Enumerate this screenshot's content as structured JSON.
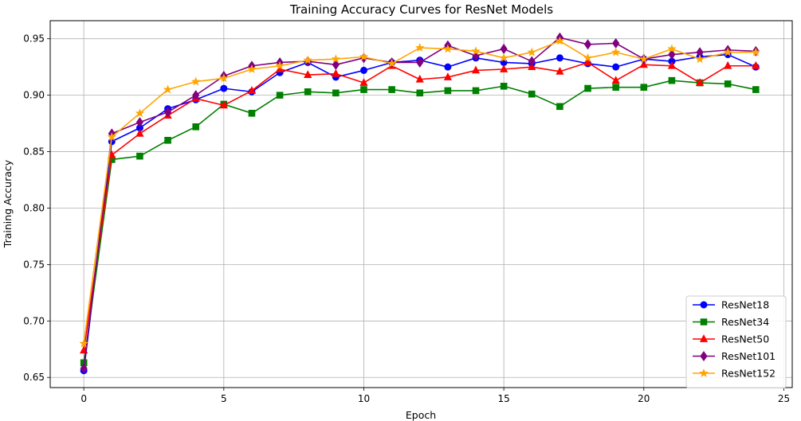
{
  "chart_data": {
    "type": "line",
    "title": "Training Accuracy Curves for ResNet Models",
    "xlabel": "Epoch",
    "ylabel": "Training Accuracy",
    "xlim": [
      -1.2,
      25.3
    ],
    "ylim": [
      0.641,
      0.966
    ],
    "x_ticks": [
      0,
      5,
      10,
      15,
      20,
      25
    ],
    "y_ticks": [
      0.65,
      0.7,
      0.75,
      0.8,
      0.85,
      0.9,
      0.95
    ],
    "grid": true,
    "legend_position": "lower-right",
    "x": [
      0,
      1,
      2,
      3,
      4,
      5,
      6,
      7,
      8,
      9,
      10,
      11,
      12,
      13,
      14,
      15,
      16,
      17,
      18,
      19,
      20,
      21,
      22,
      23,
      24
    ],
    "series": [
      {
        "name": "ResNet18",
        "color": "#0000ff",
        "marker": "circle",
        "values": [
          0.656,
          0.859,
          0.871,
          0.888,
          0.896,
          0.906,
          0.903,
          0.92,
          0.929,
          0.916,
          0.922,
          0.929,
          0.931,
          0.925,
          0.933,
          0.929,
          0.928,
          0.933,
          0.928,
          0.925,
          0.932,
          0.93,
          0.934,
          0.936,
          0.925
        ]
      },
      {
        "name": "ResNet34",
        "color": "#008000",
        "marker": "square",
        "values": [
          0.663,
          0.843,
          0.846,
          0.86,
          0.872,
          0.892,
          0.884,
          0.9,
          0.903,
          0.902,
          0.905,
          0.905,
          0.902,
          0.904,
          0.904,
          0.908,
          0.901,
          0.89,
          0.906,
          0.907,
          0.907,
          0.913,
          0.911,
          0.91,
          0.905
        ]
      },
      {
        "name": "ResNet50",
        "color": "#ff0000",
        "marker": "triangle",
        "values": [
          0.674,
          0.847,
          0.866,
          0.882,
          0.897,
          0.891,
          0.904,
          0.923,
          0.918,
          0.919,
          0.911,
          0.926,
          0.914,
          0.916,
          0.922,
          0.923,
          0.925,
          0.921,
          0.929,
          0.913,
          0.927,
          0.926,
          0.911,
          0.926,
          0.926
        ]
      },
      {
        "name": "ResNet101",
        "color": "#800080",
        "marker": "diamond",
        "values": [
          0.658,
          0.866,
          0.876,
          0.885,
          0.9,
          0.917,
          0.926,
          0.929,
          0.93,
          0.927,
          0.933,
          0.929,
          0.929,
          0.944,
          0.935,
          0.941,
          0.93,
          0.951,
          0.945,
          0.946,
          0.932,
          0.936,
          0.938,
          0.94,
          0.939
        ]
      },
      {
        "name": "ResNet152",
        "color": "#ffa500",
        "marker": "star",
        "values": [
          0.68,
          0.863,
          0.884,
          0.905,
          0.912,
          0.915,
          0.923,
          0.926,
          0.931,
          0.932,
          0.934,
          0.928,
          0.942,
          0.941,
          0.939,
          0.933,
          0.938,
          0.948,
          0.933,
          0.938,
          0.932,
          0.941,
          0.932,
          0.938,
          0.938
        ]
      }
    ]
  }
}
